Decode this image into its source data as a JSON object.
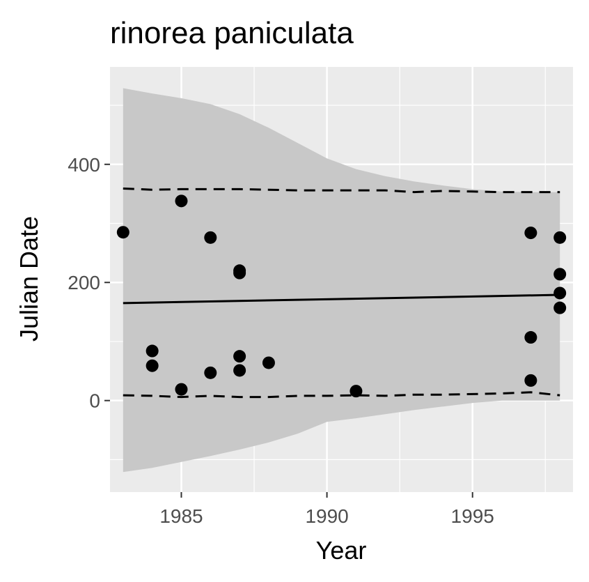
{
  "chart_data": {
    "type": "scatter",
    "title": "rinorea paniculata",
    "xlabel": "Year",
    "ylabel": "Julian Date",
    "xlim": [
      1982.55,
      1998.45
    ],
    "ylim": [
      -155,
      565
    ],
    "x_ticks": [
      1985,
      1990,
      1995
    ],
    "x_tick_labels": [
      "1985",
      "1990",
      "1995"
    ],
    "y_ticks": [
      0,
      200,
      400
    ],
    "y_tick_labels": [
      "0",
      "200",
      "400"
    ],
    "grid": true,
    "legend": "none",
    "colors": {
      "panel": "#ebebeb",
      "grid": "#ffffff",
      "ribbon": "#c8c8c8",
      "points": "#000000",
      "lines": "#000000"
    },
    "points": [
      {
        "x": 1983,
        "y": 285
      },
      {
        "x": 1984,
        "y": 84
      },
      {
        "x": 1984,
        "y": 59
      },
      {
        "x": 1985,
        "y": 338
      },
      {
        "x": 1985,
        "y": 19
      },
      {
        "x": 1986,
        "y": 276
      },
      {
        "x": 1986,
        "y": 47
      },
      {
        "x": 1987,
        "y": 220
      },
      {
        "x": 1987,
        "y": 216
      },
      {
        "x": 1987,
        "y": 75
      },
      {
        "x": 1987,
        "y": 51
      },
      {
        "x": 1988,
        "y": 64
      },
      {
        "x": 1991,
        "y": 16
      },
      {
        "x": 1997,
        "y": 284
      },
      {
        "x": 1997,
        "y": 107
      },
      {
        "x": 1997,
        "y": 34
      },
      {
        "x": 1998,
        "y": 276
      },
      {
        "x": 1998,
        "y": 214
      },
      {
        "x": 1998,
        "y": 182
      },
      {
        "x": 1998,
        "y": 157
      }
    ],
    "trend_line": [
      {
        "x": 1983,
        "y": 165
      },
      {
        "x": 1998,
        "y": 179
      }
    ],
    "upper_dashed": [
      {
        "x": 1983,
        "y": 359
      },
      {
        "x": 1984,
        "y": 357
      },
      {
        "x": 1985,
        "y": 358
      },
      {
        "x": 1986,
        "y": 358
      },
      {
        "x": 1987,
        "y": 358
      },
      {
        "x": 1988,
        "y": 357
      },
      {
        "x": 1989,
        "y": 356
      },
      {
        "x": 1990,
        "y": 356
      },
      {
        "x": 1991,
        "y": 356
      },
      {
        "x": 1992,
        "y": 356
      },
      {
        "x": 1993,
        "y": 353
      },
      {
        "x": 1994,
        "y": 355
      },
      {
        "x": 1995,
        "y": 354
      },
      {
        "x": 1996,
        "y": 353
      },
      {
        "x": 1997,
        "y": 353
      },
      {
        "x": 1998,
        "y": 353
      }
    ],
    "lower_dashed": [
      {
        "x": 1983,
        "y": 9
      },
      {
        "x": 1984,
        "y": 8
      },
      {
        "x": 1985,
        "y": 6
      },
      {
        "x": 1986,
        "y": 8
      },
      {
        "x": 1987,
        "y": 6
      },
      {
        "x": 1988,
        "y": 6
      },
      {
        "x": 1989,
        "y": 8
      },
      {
        "x": 1990,
        "y": 8
      },
      {
        "x": 1991,
        "y": 9
      },
      {
        "x": 1992,
        "y": 8
      },
      {
        "x": 1993,
        "y": 10
      },
      {
        "x": 1994,
        "y": 10
      },
      {
        "x": 1995,
        "y": 11
      },
      {
        "x": 1996,
        "y": 12
      },
      {
        "x": 1997,
        "y": 14
      },
      {
        "x": 1998,
        "y": 9
      }
    ],
    "ribbon": [
      {
        "x": 1983,
        "lower": -121,
        "upper": 529
      },
      {
        "x": 1984,
        "lower": -114,
        "upper": 520
      },
      {
        "x": 1985,
        "lower": -104,
        "upper": 512
      },
      {
        "x": 1986,
        "lower": -94,
        "upper": 502
      },
      {
        "x": 1987,
        "lower": -83,
        "upper": 485
      },
      {
        "x": 1988,
        "lower": -71,
        "upper": 462
      },
      {
        "x": 1989,
        "lower": -56,
        "upper": 436
      },
      {
        "x": 1990,
        "lower": -36,
        "upper": 410
      },
      {
        "x": 1991,
        "lower": -30,
        "upper": 392
      },
      {
        "x": 1992,
        "lower": -23,
        "upper": 380
      },
      {
        "x": 1993,
        "lower": -16,
        "upper": 371
      },
      {
        "x": 1994,
        "lower": -10,
        "upper": 364
      },
      {
        "x": 1995,
        "lower": -4,
        "upper": 358
      },
      {
        "x": 1996,
        "lower": 0,
        "upper": 354
      },
      {
        "x": 1997,
        "lower": 0,
        "upper": 353
      },
      {
        "x": 1998,
        "lower": 0,
        "upper": 353
      }
    ]
  }
}
